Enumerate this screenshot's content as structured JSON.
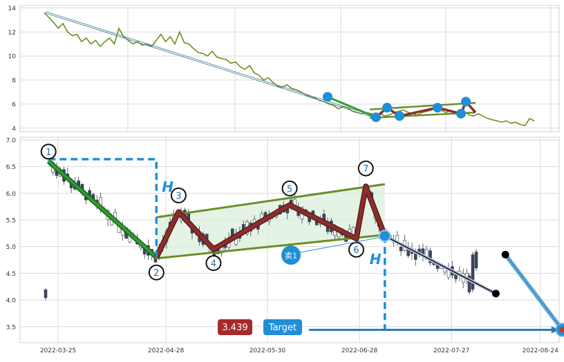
{
  "chart_data": [
    {
      "type": "line",
      "ylim": [
        3.7,
        14.2
      ],
      "yticks": [
        "4",
        "6",
        "8",
        "10",
        "12",
        "14"
      ],
      "grid": true,
      "series": [
        {
          "values": [
            13.6,
            13.2,
            12.8,
            12.3,
            12.7,
            12.0,
            11.7,
            11.8,
            11.2,
            11.5,
            11.0,
            11.3,
            10.8,
            11.2,
            11.5,
            11.0,
            12.3,
            11.6,
            11.3,
            11.0,
            11.2,
            10.9,
            11.0,
            10.8,
            11.3,
            11.8,
            11.2,
            11.6,
            11.0,
            12.0,
            11.1,
            11.0,
            10.6,
            10.3,
            10.2,
            10.0,
            10.4,
            9.9,
            9.8,
            9.7,
            9.4,
            9.5,
            9.1,
            8.9,
            9.2,
            8.6,
            8.4,
            8.0,
            8.2,
            7.8,
            7.5,
            7.4,
            7.6,
            7.3,
            7.2,
            7.0,
            6.8,
            6.6,
            6.5,
            6.3,
            6.2,
            6.0,
            5.9,
            5.6,
            5.8,
            5.7,
            5.4,
            5.3,
            5.2,
            5.3,
            5.2,
            5.1,
            5.2,
            5.0,
            5.1,
            5.3,
            5.4,
            5.5,
            5.3,
            5.2,
            5.1,
            5.3,
            5.4,
            5.5,
            5.7,
            5.5,
            5.3,
            5.4,
            5.2,
            5.1,
            5.4,
            5.1,
            5.0,
            5.2,
            5.0,
            4.8,
            4.7,
            4.6,
            4.5,
            4.6,
            4.4,
            4.5,
            4.3,
            4.2,
            4.8,
            4.6
          ]
        }
      ]
    },
    {
      "type": "candlestick",
      "ylim": [
        3.2,
        7.05
      ],
      "yticks": [
        "3.5",
        "4.0",
        "4.5",
        "5.0",
        "5.5",
        "6.0",
        "6.5",
        "7.0"
      ],
      "x_ticks": [
        "2022-03-25",
        "2022-04-28",
        "2022-05-30",
        "2022-06-28",
        "2022-07-27",
        "2022-08-24"
      ],
      "grid": true,
      "pattern_points": [
        {
          "label": "1",
          "date": "2022-03-22",
          "value": 6.6
        },
        {
          "label": "2",
          "date": "2022-04-25",
          "value": 4.8
        },
        {
          "label": "3",
          "date": "2022-05-02",
          "value": 5.65
        },
        {
          "label": "4",
          "date": "2022-05-13",
          "value": 4.95
        },
        {
          "label": "5",
          "date": "2022-06-06",
          "value": 5.78
        },
        {
          "label": "6",
          "date": "2022-06-27",
          "value": 5.15
        },
        {
          "label": "7",
          "date": "2022-06-30",
          "value": 6.13
        }
      ],
      "breakout_point": {
        "date": "2022-07-06",
        "value": 5.2
      },
      "downtrend_end": {
        "date": "2022-08-10",
        "value": 4.12
      },
      "rebound_point": {
        "date": "2022-08-13",
        "value": 4.85
      },
      "target_point": {
        "date": "2022-08-31",
        "value": 3.44
      },
      "channel": {
        "upper_start": {
          "date": "2022-04-25",
          "value": 5.55
        },
        "upper_end": {
          "date": "2022-07-06",
          "value": 6.17
        },
        "lower_start": {
          "date": "2022-04-25",
          "value": 4.78
        },
        "lower_end": {
          "date": "2022-07-06",
          "value": 5.22
        }
      },
      "annotations": {
        "h_label": "H",
        "sell_label": "卖1",
        "target_value": "3.439",
        "target_label": "Target"
      }
    }
  ],
  "colors": {
    "price_line": "#6b8e23",
    "pattern_line": "#8b2e2e",
    "marker": "#1f8fd6",
    "target_box": "#a52a2a",
    "target_label_box": "#1f8fd6",
    "channel_fill": "#dcefdc",
    "trend_green": "#2e9e2e",
    "dashed_blue": "#1f8fd6"
  }
}
